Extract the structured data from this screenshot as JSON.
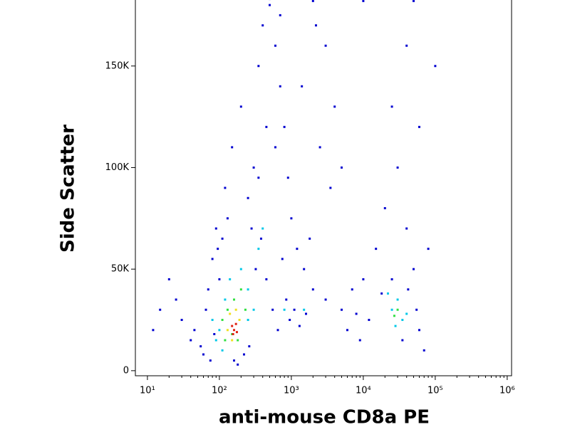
{
  "chart_data": {
    "type": "scatter",
    "log_x": true,
    "xlabel": "anti-mouse CD8a PE",
    "ylabel": "Side Scatter",
    "xlim": [
      6.8,
      1150000
    ],
    "ylim": [
      -2500,
      182500
    ],
    "xticks": [
      {
        "value": 10,
        "label": "10¹"
      },
      {
        "value": 100,
        "label": "10²"
      },
      {
        "value": 1000,
        "label": "10³"
      },
      {
        "value": 10000,
        "label": "10⁴"
      },
      {
        "value": 100000,
        "label": "10⁵"
      },
      {
        "value": 1000000,
        "label": "10⁶"
      }
    ],
    "yticks": [
      0,
      {
        "value": 50000,
        "label": "50K"
      },
      {
        "value": 100000,
        "label": "100K"
      },
      {
        "value": 150000,
        "label": "150K"
      }
    ],
    "series": [
      {
        "color": "#0000d0",
        "x": [
          30,
          40,
          25,
          60,
          70,
          80,
          90,
          100,
          120,
          150,
          200,
          250,
          300,
          350,
          400,
          500,
          600,
          700,
          800,
          900,
          1000,
          1200,
          1500,
          2000,
          3000,
          5000,
          8000,
          10000,
          15000,
          20000,
          30000,
          40000,
          50000,
          60000,
          70000,
          45,
          55,
          65,
          75,
          85,
          95,
          110,
          130,
          160,
          180,
          220,
          260,
          320,
          380,
          450,
          550,
          650,
          750,
          850,
          950,
          1100,
          1300,
          1600,
          1800,
          2500,
          3500,
          4000,
          6000,
          7000,
          9000,
          12000,
          18000,
          25000,
          35000,
          42000,
          55000,
          80000,
          100000,
          20,
          15,
          12,
          700,
          450,
          350,
          280,
          600,
          1400,
          2200,
          3000,
          5000,
          25000,
          40000,
          60000,
          500,
          2000,
          10000,
          50000
        ],
        "values": [
          25000,
          15000,
          35000,
          8000,
          40000,
          55000,
          70000,
          45000,
          90000,
          110000,
          130000,
          85000,
          100000,
          150000,
          170000,
          180000,
          160000,
          140000,
          120000,
          95000,
          75000,
          60000,
          50000,
          40000,
          35000,
          30000,
          28000,
          45000,
          60000,
          80000,
          100000,
          70000,
          50000,
          20000,
          10000,
          20000,
          12000,
          30000,
          5000,
          18000,
          60000,
          65000,
          75000,
          5000,
          3000,
          8000,
          12000,
          50000,
          65000,
          45000,
          30000,
          20000,
          55000,
          35000,
          25000,
          30000,
          22000,
          28000,
          65000,
          110000,
          90000,
          130000,
          20000,
          40000,
          15000,
          25000,
          38000,
          45000,
          15000,
          40000,
          30000,
          60000,
          150000,
          45000,
          30000,
          20000,
          175000,
          120000,
          95000,
          70000,
          110000,
          140000,
          170000,
          160000,
          100000,
          130000,
          160000,
          120000,
          183000,
          182000,
          182000,
          182000
        ]
      },
      {
        "color": "#00c8e8",
        "x": [
          100,
          120,
          140,
          200,
          250,
          300,
          80,
          90,
          110,
          350,
          400,
          250,
          25000,
          30000,
          35000,
          28000,
          40000,
          22000,
          1500,
          800
        ],
        "values": [
          20000,
          35000,
          45000,
          50000,
          40000,
          30000,
          25000,
          15000,
          10000,
          60000,
          70000,
          25000,
          30000,
          35000,
          25000,
          22000,
          28000,
          38000,
          30000,
          30000
        ]
      },
      {
        "color": "#30e040",
        "x": [
          110,
          130,
          160,
          200,
          180,
          230,
          150,
          120,
          30000,
          27000
        ],
        "values": [
          25000,
          30000,
          35000,
          40000,
          15000,
          30000,
          18000,
          15000,
          30000,
          27000
        ]
      },
      {
        "color": "#f0e020",
        "x": [
          140,
          170,
          190,
          150,
          130
        ],
        "values": [
          28000,
          30000,
          25000,
          15000,
          20000
        ]
      },
      {
        "color": "#e02010",
        "x": [
          150,
          160,
          170,
          155,
          175
        ],
        "values": [
          22000,
          20000,
          23000,
          18000,
          19000
        ]
      }
    ]
  }
}
